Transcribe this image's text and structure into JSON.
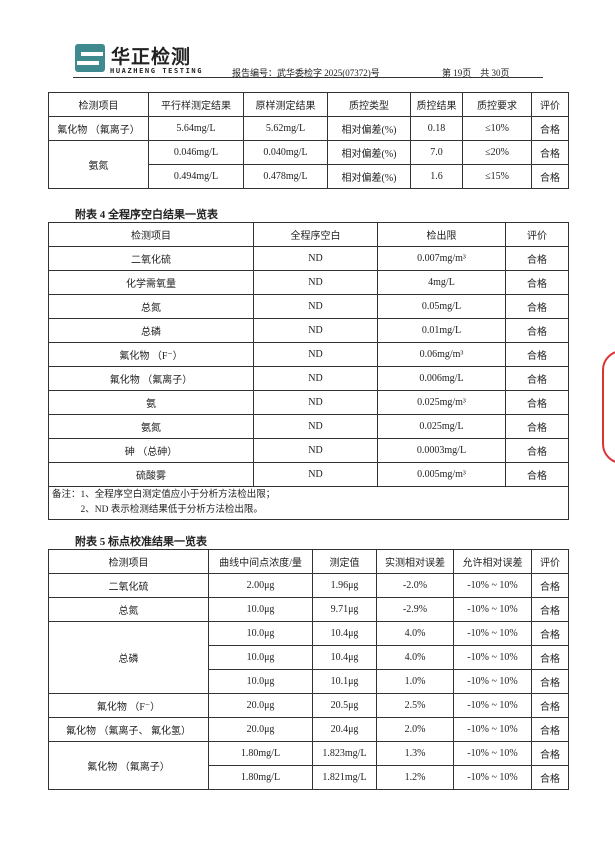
{
  "header": {
    "brand": "华正检测",
    "brand_en": "HUAZHENG  TESTING",
    "report_no": "报告编号：武华委检字 2025(07372)号",
    "page": "第 19页　共 30页"
  },
  "table1": {
    "headers": [
      "检测项目",
      "平行样测定结果",
      "原样测定结果",
      "质控类型",
      "质控结果",
      "质控要求",
      "评价"
    ],
    "rows": [
      [
        "氟化物 （氟离子）",
        "5.64mg/L",
        "5.62mg/L",
        "相对偏差(%)",
        "0.18",
        "≤10%",
        "合格"
      ],
      [
        "氨氮",
        "0.046mg/L",
        "0.040mg/L",
        "相对偏差(%)",
        "7.0",
        "≤20%",
        "合格"
      ],
      [
        "",
        "0.494mg/L",
        "0.478mg/L",
        "相对偏差(%)",
        "1.6",
        "≤15%",
        "合格"
      ]
    ]
  },
  "table4": {
    "caption": "附表 4  全程序空白结果一览表",
    "headers": [
      "检测项目",
      "全程序空白",
      "检出限",
      "评价"
    ],
    "rows": [
      [
        "二氧化硫",
        "ND",
        "0.007mg/m³",
        "合格"
      ],
      [
        "化学需氧量",
        "ND",
        "4mg/L",
        "合格"
      ],
      [
        "总氮",
        "ND",
        "0.05mg/L",
        "合格"
      ],
      [
        "总磷",
        "ND",
        "0.01mg/L",
        "合格"
      ],
      [
        "氟化物 （F⁻）",
        "ND",
        "0.06mg/m³",
        "合格"
      ],
      [
        "氟化物 （氟离子）",
        "ND",
        "0.006mg/L",
        "合格"
      ],
      [
        "氨",
        "ND",
        "0.025mg/m³",
        "合格"
      ],
      [
        "氨氮",
        "ND",
        "0.025mg/L",
        "合格"
      ],
      [
        "砷 （总砷）",
        "ND",
        "0.0003mg/L",
        "合格"
      ],
      [
        "硫酸雾",
        "ND",
        "0.005mg/m³",
        "合格"
      ]
    ],
    "note1": "备注：1、全程序空白测定值应小于分析方法检出限；",
    "note2": "　　　2、ND 表示检测结果低于分析方法检出限。"
  },
  "table5": {
    "caption": "附表 5  标点校准结果一览表",
    "headers": [
      "检测项目",
      "曲线中间点浓度/量",
      "测定值",
      "实测相对误差",
      "允许相对误差",
      "评价"
    ],
    "rows": [
      [
        "二氧化硫",
        "2.00μg",
        "1.96μg",
        "-2.0%",
        "-10% ~ 10%",
        "合格"
      ],
      [
        "总氮",
        "10.0μg",
        "9.71μg",
        "-2.9%",
        "-10% ~ 10%",
        "合格"
      ],
      [
        "总磷",
        "10.0μg",
        "10.4μg",
        "4.0%",
        "-10% ~ 10%",
        "合格"
      ],
      [
        "",
        "10.0μg",
        "10.4μg",
        "4.0%",
        "-10% ~ 10%",
        "合格"
      ],
      [
        "",
        "10.0μg",
        "10.1μg",
        "1.0%",
        "-10% ~ 10%",
        "合格"
      ],
      [
        "氟化物 （F⁻）",
        "20.0μg",
        "20.5μg",
        "2.5%",
        "-10% ~ 10%",
        "合格"
      ],
      [
        "氟化物 （氟离子、 氟化氢）",
        "20.0μg",
        "20.4μg",
        "2.0%",
        "-10% ~ 10%",
        "合格"
      ],
      [
        "氟化物 （氟离子）",
        "1.80mg/L",
        "1.823mg/L",
        "1.3%",
        "-10% ~ 10%",
        "合格"
      ],
      [
        "",
        "1.80mg/L",
        "1.821mg/L",
        "1.2%",
        "-10% ~ 10%",
        "合格"
      ]
    ]
  },
  "colors": {
    "logo": "#3f8a8e",
    "stamp": "#dd3333"
  }
}
